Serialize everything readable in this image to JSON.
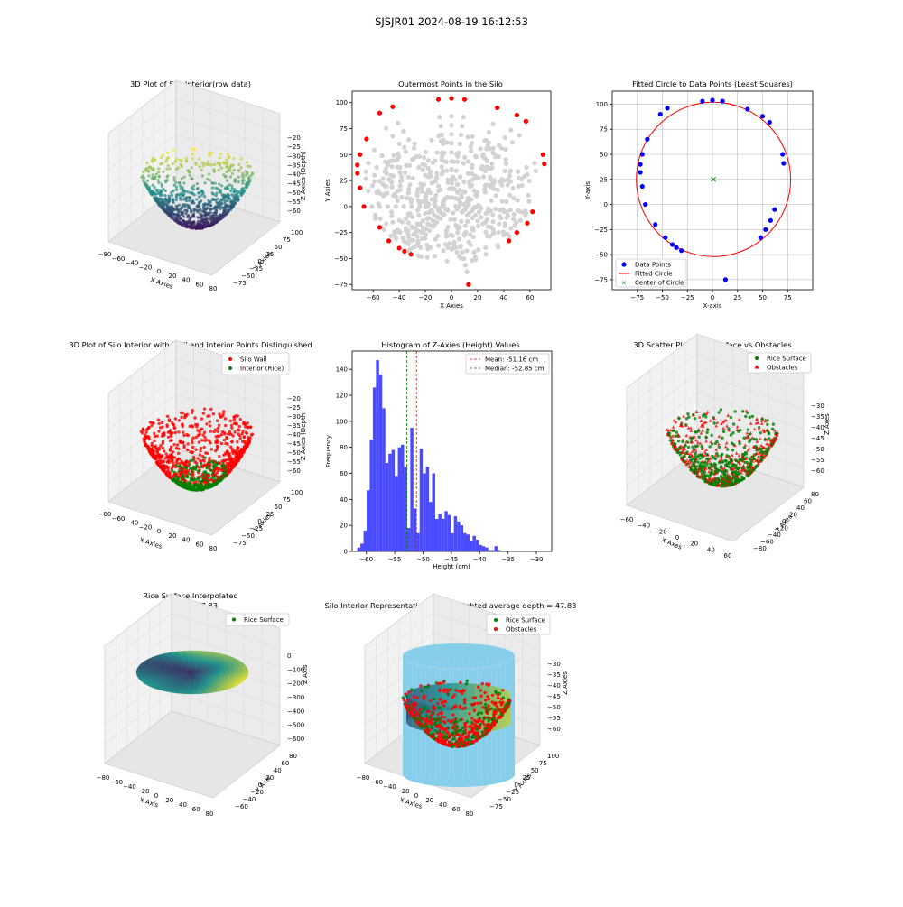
{
  "figure": {
    "suptitle": "SJSJR01 2024-08-19 16:12:53",
    "colors": {
      "red": "#ff0000",
      "blue": "#0000ff",
      "green": "#008000",
      "gray": "#d3d3d3",
      "silo_blue": "#87ceeb",
      "hist_blue": "#4a4aff",
      "viridis_dark": "#440154",
      "viridis_mid": "#21918c",
      "viridis_light": "#fde725"
    }
  },
  "chart_data": [
    {
      "type": "scatter",
      "kind": "3d-surface",
      "title": "3D Plot of Silo Interior(row data)",
      "xlabel": "X Axies",
      "ylabel": "Y Axies",
      "zlabel": "Z Axies (Depth)",
      "xticks": [
        "−80",
        "−60",
        "−40",
        "−20",
        "0",
        "20",
        "40",
        "60",
        "80"
      ],
      "yticks": [
        "−75",
        "−50",
        "−25",
        "0",
        "25",
        "50",
        "75",
        "100"
      ],
      "zticks": [
        "−20",
        "−25",
        "−30",
        "−35",
        "−40",
        "−45",
        "−50",
        "−55",
        "−60"
      ],
      "colormap": "viridis"
    },
    {
      "type": "scatter",
      "title": "Outermost Points in the Silo",
      "xlabel": "X Axies",
      "ylabel": "Y Axies",
      "xticks": [
        "−60",
        "−40",
        "−20",
        "0",
        "20",
        "40",
        "60"
      ],
      "yticks": [
        "−75",
        "−50",
        "−25",
        "0",
        "25",
        "50",
        "75",
        "100"
      ],
      "xlim": [
        -76,
        76
      ],
      "ylim": [
        -80,
        111
      ],
      "outer_points": [
        [
          -70,
          50
        ],
        [
          -72,
          40
        ],
        [
          -72,
          32
        ],
        [
          -70,
          18
        ],
        [
          -67,
          0
        ],
        [
          -55,
          -20
        ],
        [
          -48,
          -33
        ],
        [
          -40,
          -40
        ],
        [
          -36,
          -43
        ],
        [
          -31,
          -46
        ],
        [
          -65,
          65
        ],
        [
          -55,
          90
        ],
        [
          -45,
          96
        ],
        [
          -10,
          103
        ],
        [
          0,
          104
        ],
        [
          10,
          103
        ],
        [
          35,
          95
        ],
        [
          50,
          88
        ],
        [
          57,
          82
        ],
        [
          70,
          50
        ],
        [
          71,
          41
        ],
        [
          62,
          -5
        ],
        [
          58,
          -16
        ],
        [
          50,
          -25
        ],
        [
          44,
          -33
        ],
        [
          13,
          -75
        ]
      ]
    },
    {
      "type": "scatter",
      "title": "Fitted Circle to Data Points (Least Squares)",
      "xlabel": "X-axis",
      "ylabel": "Y-axis",
      "xticks": [
        "−75",
        "−50",
        "−25",
        "0",
        "25",
        "50",
        "75"
      ],
      "yticks": [
        "−75",
        "−50",
        "−25",
        "0",
        "25",
        "50",
        "75",
        "100"
      ],
      "xlim": [
        -100,
        100
      ],
      "ylim": [
        -85,
        113
      ],
      "legend": [
        "Data Points",
        "Fitted Circle",
        "Center of Circle"
      ],
      "legend_position": "lower-left",
      "center": [
        1,
        25
      ],
      "radius": 77,
      "points": [
        [
          -70,
          50
        ],
        [
          -72,
          40
        ],
        [
          -72,
          32
        ],
        [
          -70,
          18
        ],
        [
          -67,
          0
        ],
        [
          -57,
          -20
        ],
        [
          -47,
          -33
        ],
        [
          -40,
          -40
        ],
        [
          -36,
          -43
        ],
        [
          -31,
          -46
        ],
        [
          -65,
          65
        ],
        [
          -52,
          90
        ],
        [
          -45,
          96
        ],
        [
          -10,
          103
        ],
        [
          0,
          104
        ],
        [
          10,
          103
        ],
        [
          35,
          95
        ],
        [
          50,
          88
        ],
        [
          57,
          82
        ],
        [
          70,
          50
        ],
        [
          71,
          41
        ],
        [
          62,
          -5
        ],
        [
          58,
          -16
        ],
        [
          53,
          -25
        ],
        [
          48,
          -33
        ],
        [
          13,
          -75
        ]
      ]
    },
    {
      "type": "scatter",
      "kind": "3d",
      "title": "3D Plot of Silo Interior with Wall and Interior Points Distinguished",
      "xlabel": "X Axies",
      "ylabel": "Y Axies",
      "zlabel": "Z Axies (Depth)",
      "xticks": [
        "−80",
        "−60",
        "−40",
        "−20",
        "0",
        "20",
        "40",
        "60",
        "80"
      ],
      "yticks": [
        "−75",
        "−50",
        "−25",
        "0",
        "25",
        "50",
        "75",
        "100"
      ],
      "zticks": [
        "−20",
        "−25",
        "−30",
        "−35",
        "−40",
        "−45",
        "−50",
        "−55",
        "−60"
      ],
      "legend": [
        "Silo Wall",
        "Interior (Rice)"
      ],
      "legend_position": "top-right"
    },
    {
      "type": "bar",
      "kind": "histogram",
      "title": "Histogram of Z-Axies (Height) Values",
      "xlabel": "Height (cm)",
      "ylabel": "Frequency",
      "xticks": [
        "−60",
        "−55",
        "−50",
        "−45",
        "−40",
        "−35",
        "−30"
      ],
      "yticks": [
        "0",
        "20",
        "40",
        "60",
        "80",
        "100",
        "120",
        "140"
      ],
      "xlim": [
        -62.5,
        -27.3
      ],
      "ylim": [
        0,
        154
      ],
      "bin_start": -61.6,
      "bin_width": 0.55,
      "values": [
        3,
        6,
        16,
        47,
        86,
        126,
        147,
        136,
        110,
        68,
        75,
        78,
        58,
        80,
        82,
        65,
        18,
        95,
        33,
        14,
        79,
        60,
        65,
        38,
        60,
        25,
        29,
        25,
        31,
        28,
        14,
        27,
        23,
        20,
        14,
        13,
        8,
        12,
        9,
        5,
        4,
        3,
        1,
        1,
        4,
        1
      ],
      "mean": -51.16,
      "median": -52.85,
      "legend": [
        "Mean: -51.16 cm",
        "Median: -52.85 cm"
      ],
      "legend_position": "top-right"
    },
    {
      "type": "scatter",
      "kind": "3d",
      "title": "3D Scatter Plot: Rice Surface vs Obstacles",
      "xlabel": "X Axes",
      "ylabel": "Y Axes",
      "zlabel": "Z Axes",
      "xticks": [
        "−60",
        "−40",
        "−20",
        "0",
        "20",
        "40",
        "60"
      ],
      "yticks": [
        "−80",
        "−60",
        "−40",
        "−20",
        "0",
        "20",
        "40",
        "60",
        "80"
      ],
      "zticks": [
        "−30",
        "−35",
        "−40",
        "−45",
        "−50",
        "−55",
        "−60"
      ],
      "legend": [
        "Rice Surface",
        "Obstacles"
      ],
      "legend_position": "top-right"
    },
    {
      "type": "scatter",
      "kind": "3d-surface",
      "title": "Rice Surface Interpolated",
      "title2": "depth = 47.83",
      "xlabel": "X Axis",
      "ylabel": "Y Axis",
      "zlabel": "Z Axis",
      "xticks": [
        "−80",
        "−60",
        "−40",
        "−20",
        "0",
        "20",
        "40",
        "60",
        "80"
      ],
      "yticks": [
        "−60",
        "−40",
        "−20",
        "0",
        "20",
        "40",
        "60",
        "80"
      ],
      "zticks": [
        "0",
        "−100",
        "−200",
        "−300",
        "−400",
        "−500",
        "−600"
      ],
      "legend": [
        "Rice Surface"
      ],
      "legend_position": "top-right"
    },
    {
      "type": "scatter",
      "kind": "3d",
      "title": "Silo Interior Representation using weighted average depth = 47.83",
      "xlabel": "X Axies",
      "ylabel": "Y Axies",
      "zlabel": "Z Axies",
      "xticks": [
        "−80",
        "−60",
        "−40",
        "−20",
        "0",
        "20",
        "40",
        "60",
        "80"
      ],
      "yticks": [
        "−75",
        "−50",
        "−25",
        "0",
        "25",
        "50",
        "75",
        "100"
      ],
      "zticks": [
        "−30",
        "−35",
        "−40",
        "−45",
        "−50",
        "−55",
        "−60"
      ],
      "legend": [
        "Rice Surface",
        "Obstacles"
      ],
      "legend_position": "top-center"
    }
  ]
}
